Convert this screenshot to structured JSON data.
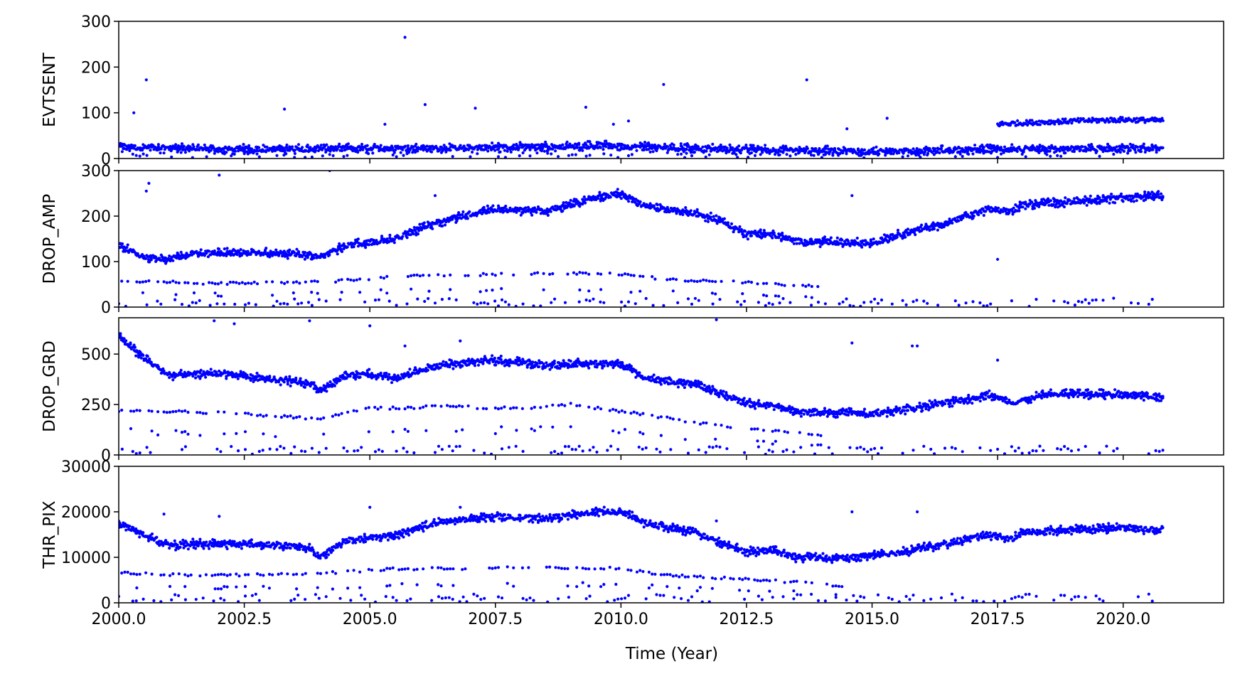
{
  "chart_data": {
    "type": "scatter",
    "marker_color": "#0000ff",
    "shared_x": {
      "label": "Time (Year)",
      "xlim": [
        2000.0,
        2022.0
      ],
      "ticks": [
        2000.0,
        2002.5,
        2005.0,
        2007.5,
        2010.0,
        2012.5,
        2015.0,
        2017.5,
        2020.0
      ],
      "tick_labels": [
        "2000.0",
        "2002.5",
        "2005.0",
        "2007.5",
        "2010.0",
        "2012.5",
        "2015.0",
        "2017.5",
        "2020.0"
      ]
    },
    "panels": [
      {
        "ylabel": "EVTSENT",
        "ylim": [
          0,
          300
        ],
        "yticks": [
          0,
          100,
          200,
          300
        ],
        "ytick_labels": [
          "0",
          "100",
          "200",
          "300"
        ],
        "trend": [
          [
            2000.0,
            25
          ],
          [
            2002.0,
            20
          ],
          [
            2005.0,
            22
          ],
          [
            2008.0,
            25
          ],
          [
            2009.5,
            28
          ],
          [
            2012.0,
            20
          ],
          [
            2015.0,
            15
          ],
          [
            2017.5,
            20
          ],
          [
            2020.8,
            22
          ]
        ],
        "secondary_trend": [
          [
            2017.5,
            75
          ],
          [
            2018.0,
            78
          ],
          [
            2019.0,
            82
          ],
          [
            2020.0,
            85
          ],
          [
            2020.8,
            83
          ]
        ],
        "outliers": [
          [
            2000.3,
            100
          ],
          [
            2000.55,
            172
          ],
          [
            2003.3,
            108
          ],
          [
            2005.3,
            75
          ],
          [
            2005.7,
            265
          ],
          [
            2006.1,
            118
          ],
          [
            2007.1,
            110
          ],
          [
            2009.3,
            112
          ],
          [
            2009.85,
            75
          ],
          [
            2010.15,
            82
          ],
          [
            2010.85,
            162
          ],
          [
            2013.7,
            172
          ],
          [
            2014.5,
            65
          ],
          [
            2015.3,
            88
          ]
        ]
      },
      {
        "ylabel": "DROP_AMP",
        "ylim": [
          0,
          300
        ],
        "yticks": [
          0,
          100,
          200,
          300
        ],
        "ytick_labels": [
          "0",
          "100",
          "200",
          "300"
        ],
        "trend": [
          [
            2000.0,
            135
          ],
          [
            2000.5,
            110
          ],
          [
            2001.0,
            105
          ],
          [
            2001.5,
            118
          ],
          [
            2003.0,
            120
          ],
          [
            2003.8,
            115
          ],
          [
            2004.0,
            108
          ],
          [
            2004.5,
            135
          ],
          [
            2005.5,
            150
          ],
          [
            2006.3,
            185
          ],
          [
            2007.0,
            205
          ],
          [
            2007.5,
            215
          ],
          [
            2008.5,
            210
          ],
          [
            2009.5,
            240
          ],
          [
            2010.0,
            250
          ],
          [
            2010.5,
            220
          ],
          [
            2011.5,
            205
          ],
          [
            2012.0,
            190
          ],
          [
            2012.5,
            160
          ],
          [
            2013.0,
            160
          ],
          [
            2013.5,
            145
          ],
          [
            2014.5,
            142
          ],
          [
            2015.0,
            140
          ],
          [
            2015.5,
            158
          ],
          [
            2016.5,
            185
          ],
          [
            2017.3,
            215
          ],
          [
            2017.8,
            210
          ],
          [
            2018.0,
            225
          ],
          [
            2019.0,
            232
          ],
          [
            2020.0,
            240
          ],
          [
            2020.8,
            245
          ]
        ],
        "secondary_trend": [
          [
            2000.0,
            58
          ],
          [
            2002.0,
            52
          ],
          [
            2004.0,
            55
          ],
          [
            2006.0,
            70
          ],
          [
            2007.5,
            72
          ],
          [
            2009.0,
            75
          ],
          [
            2010.0,
            72
          ],
          [
            2011.0,
            60
          ],
          [
            2012.0,
            58
          ],
          [
            2014.0,
            45
          ]
        ],
        "outliers": [
          [
            2000.55,
            255
          ],
          [
            2000.6,
            272
          ],
          [
            2002.0,
            290
          ],
          [
            2004.2,
            300
          ],
          [
            2006.3,
            245
          ],
          [
            2014.6,
            245
          ],
          [
            2017.5,
            105
          ]
        ]
      },
      {
        "ylabel": "DROP_GRD",
        "ylim": [
          0,
          680
        ],
        "yticks": [
          0,
          250,
          500
        ],
        "ytick_labels": [
          "0",
          "250",
          "500"
        ],
        "trend": [
          [
            2000.0,
            590
          ],
          [
            2000.5,
            480
          ],
          [
            2001.0,
            395
          ],
          [
            2002.0,
            405
          ],
          [
            2003.0,
            375
          ],
          [
            2003.8,
            355
          ],
          [
            2004.0,
            320
          ],
          [
            2004.5,
            390
          ],
          [
            2005.0,
            400
          ],
          [
            2005.5,
            375
          ],
          [
            2006.0,
            420
          ],
          [
            2006.5,
            445
          ],
          [
            2007.5,
            470
          ],
          [
            2008.5,
            445
          ],
          [
            2009.5,
            455
          ],
          [
            2010.0,
            450
          ],
          [
            2010.5,
            380
          ],
          [
            2011.5,
            350
          ],
          [
            2012.0,
            300
          ],
          [
            2012.5,
            255
          ],
          [
            2013.0,
            245
          ],
          [
            2013.5,
            215
          ],
          [
            2014.5,
            210
          ],
          [
            2015.0,
            200
          ],
          [
            2016.0,
            240
          ],
          [
            2017.0,
            280
          ],
          [
            2017.3,
            300
          ],
          [
            2017.8,
            260
          ],
          [
            2018.5,
            300
          ],
          [
            2020.0,
            300
          ],
          [
            2020.8,
            290
          ]
        ],
        "secondary_trend": [
          [
            2000.0,
            220
          ],
          [
            2002.0,
            210
          ],
          [
            2004.0,
            180
          ],
          [
            2005.0,
            230
          ],
          [
            2006.5,
            240
          ],
          [
            2008.0,
            230
          ],
          [
            2009.0,
            250
          ],
          [
            2010.5,
            200
          ],
          [
            2011.5,
            160
          ],
          [
            2012.5,
            130
          ],
          [
            2014.0,
            100
          ]
        ],
        "outliers": [
          [
            2001.9,
            665
          ],
          [
            2002.3,
            650
          ],
          [
            2003.8,
            665
          ],
          [
            2005.0,
            640
          ],
          [
            2005.7,
            540
          ],
          [
            2006.8,
            565
          ],
          [
            2011.9,
            670
          ],
          [
            2014.6,
            555
          ],
          [
            2015.8,
            540
          ],
          [
            2015.9,
            540
          ],
          [
            2017.5,
            470
          ]
        ]
      },
      {
        "ylabel": "THR_PIX",
        "ylim": [
          0,
          30000
        ],
        "yticks": [
          0,
          10000,
          20000,
          30000
        ],
        "ytick_labels": [
          "0",
          "10000",
          "20000",
          "30000"
        ],
        "trend": [
          [
            2000.0,
            17500
          ],
          [
            2000.5,
            15000
          ],
          [
            2001.0,
            12500
          ],
          [
            2001.5,
            13000
          ],
          [
            2003.0,
            12800
          ],
          [
            2003.8,
            12000
          ],
          [
            2004.0,
            10000
          ],
          [
            2004.5,
            13500
          ],
          [
            2005.5,
            15000
          ],
          [
            2006.3,
            17500
          ],
          [
            2007.0,
            18500
          ],
          [
            2007.5,
            19000
          ],
          [
            2008.5,
            18500
          ],
          [
            2009.5,
            20000
          ],
          [
            2010.0,
            20000
          ],
          [
            2010.5,
            17500
          ],
          [
            2011.5,
            15500
          ],
          [
            2012.0,
            13000
          ],
          [
            2012.5,
            11200
          ],
          [
            2013.0,
            11500
          ],
          [
            2013.5,
            10000
          ],
          [
            2014.5,
            9800
          ],
          [
            2015.0,
            10500
          ],
          [
            2015.5,
            11000
          ],
          [
            2016.5,
            13000
          ],
          [
            2017.3,
            15000
          ],
          [
            2017.8,
            14000
          ],
          [
            2018.0,
            15500
          ],
          [
            2019.0,
            16000
          ],
          [
            2020.0,
            16500
          ],
          [
            2020.8,
            16000
          ]
        ],
        "secondary_trend": [
          [
            2000.0,
            6500
          ],
          [
            2002.0,
            6000
          ],
          [
            2004.0,
            6500
          ],
          [
            2005.5,
            7500
          ],
          [
            2007.0,
            7500
          ],
          [
            2008.5,
            7800
          ],
          [
            2010.0,
            7500
          ],
          [
            2011.0,
            6000
          ],
          [
            2012.0,
            5500
          ],
          [
            2013.5,
            4500
          ],
          [
            2014.5,
            3500
          ]
        ],
        "outliers": [
          [
            2000.9,
            19500
          ],
          [
            2002.0,
            19000
          ],
          [
            2005.0,
            21000
          ],
          [
            2006.8,
            21000
          ],
          [
            2011.9,
            18000
          ],
          [
            2014.6,
            20000
          ],
          [
            2015.9,
            20000
          ],
          [
            2017.5,
            14000
          ]
        ]
      }
    ]
  }
}
